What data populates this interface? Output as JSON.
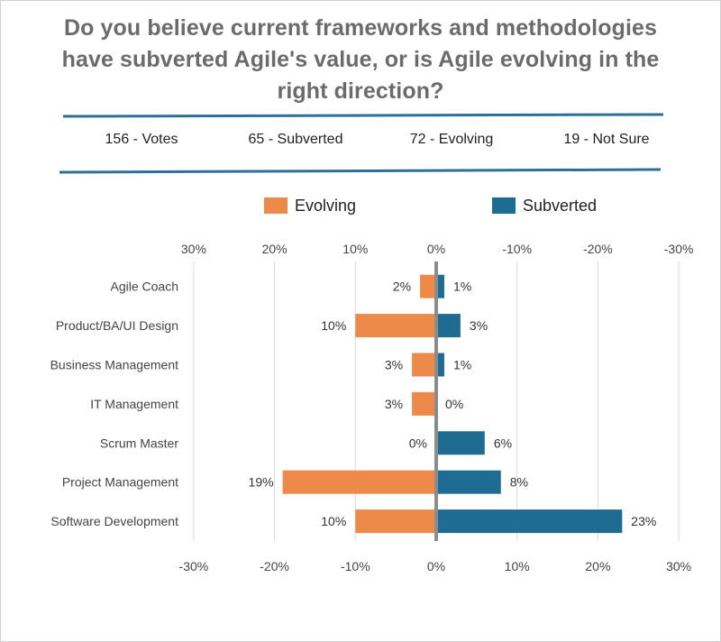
{
  "title_lines": [
    "Do you believe current frameworks and methodologies",
    "have subverted Agile's value, or is Agile evolving in the",
    "right direction?"
  ],
  "stats": {
    "votes": "156 - Votes",
    "subverted": "65 - Subverted",
    "evolving": "72 - Evolving",
    "not_sure": "19 - Not Sure"
  },
  "colors": {
    "evolving": "#ED8A49",
    "subverted": "#1F6C93",
    "divider": "#2E6F97",
    "axis": "#8c8c8c",
    "grid": "#d9d9d9"
  },
  "chart_data": {
    "type": "bar",
    "orientation": "horizontal-diverging",
    "categories": [
      "Agile  Coach",
      "Product/BA/UI Design",
      "Business Management",
      "IT Management",
      "Scrum Master",
      "Project Management",
      "Software Development"
    ],
    "series": [
      {
        "name": "Evolving",
        "values": [
          2,
          10,
          3,
          3,
          0,
          19,
          10
        ],
        "labels": [
          "2%",
          "10%",
          "3%",
          "3%",
          "0%",
          "19%",
          "10%"
        ]
      },
      {
        "name": "Subverted",
        "values": [
          1,
          3,
          1,
          0,
          6,
          8,
          23
        ],
        "labels": [
          "1%",
          "3%",
          "1%",
          "0%",
          "6%",
          "8%",
          "23%"
        ]
      }
    ],
    "xlim": [
      -30,
      30
    ],
    "x_ticks_top": [
      "30%",
      "20%",
      "10%",
      "0%",
      "-10%",
      "-20%",
      "-30%"
    ],
    "x_ticks_bottom": [
      "-30%",
      "-20%",
      "-10%",
      "0%",
      "10%",
      "20%",
      "30%"
    ],
    "legend": [
      "Evolving",
      "Subverted"
    ],
    "legend_position": "top",
    "grid": true
  }
}
